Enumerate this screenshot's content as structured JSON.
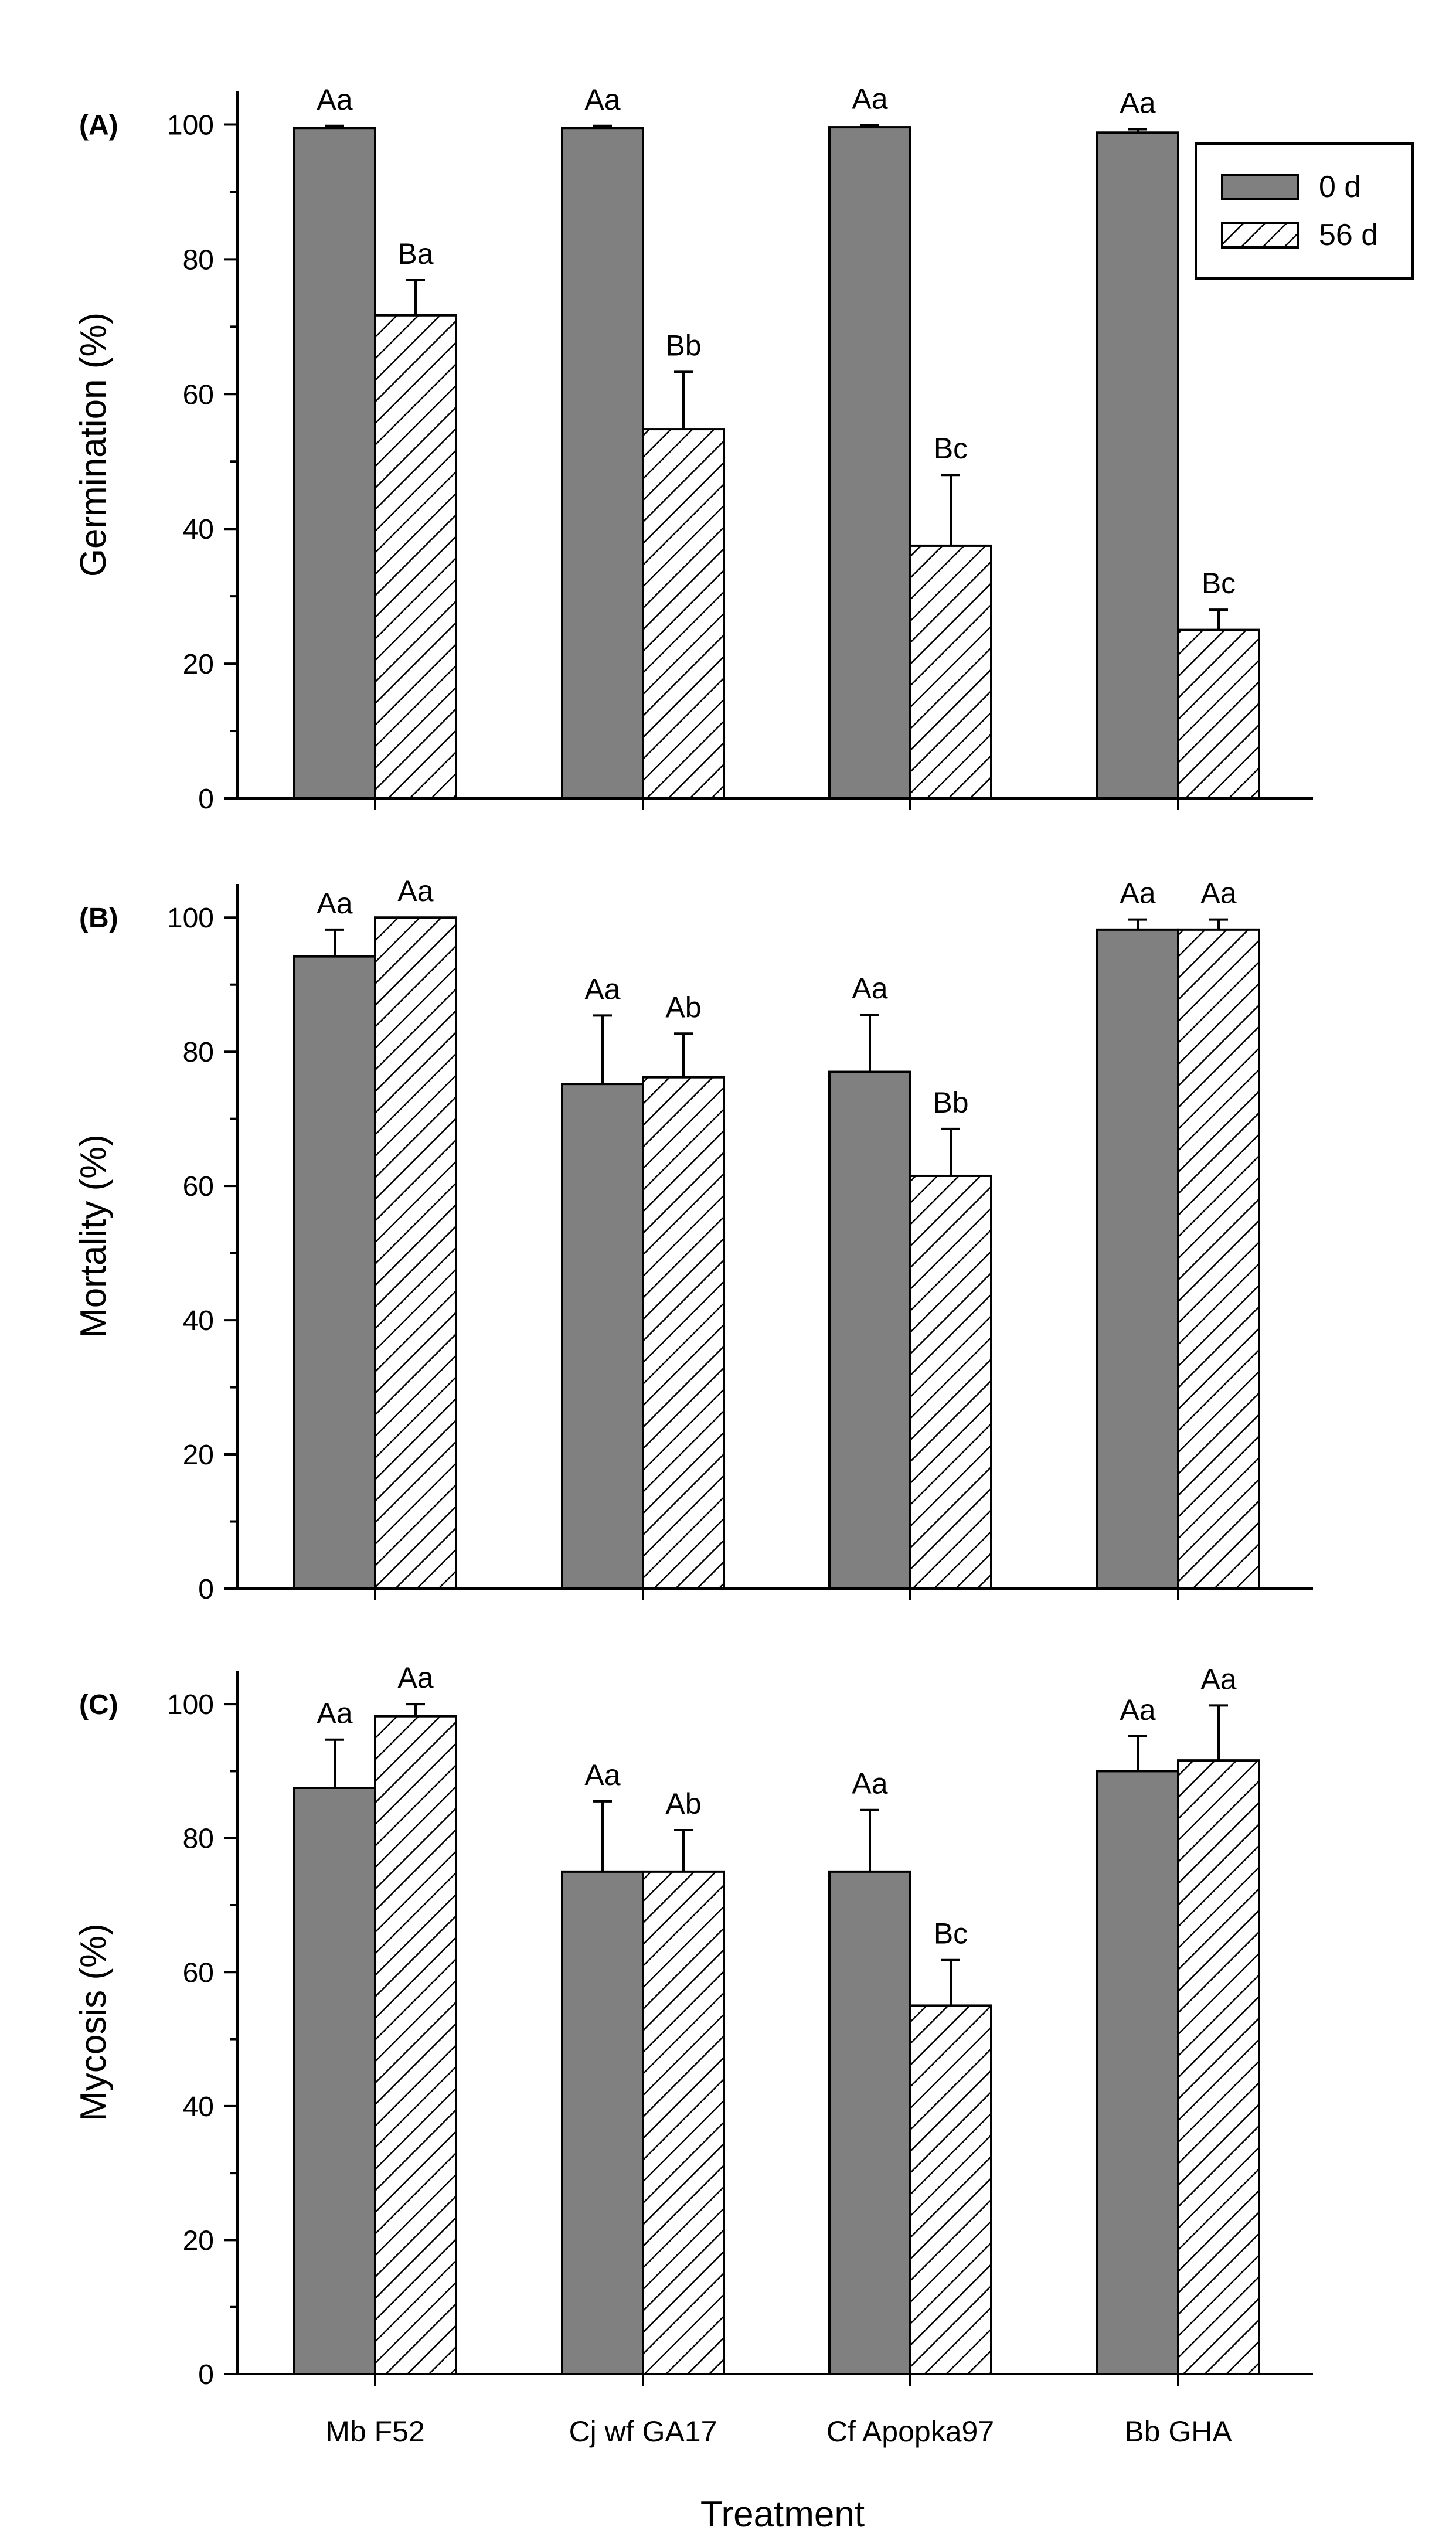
{
  "chart_data": [
    {
      "panel": "(A)",
      "type": "bar",
      "ylabel": "Germination (%)",
      "ylim": [
        0,
        105
      ],
      "yticks": [
        0,
        20,
        40,
        60,
        80,
        100
      ],
      "categories": [
        "Mb F52",
        "Cj wf GA17",
        "Cf Apopka97",
        "Bb GHA"
      ],
      "series": [
        {
          "name": "0 d",
          "values": [
            99.5,
            99.5,
            99.6,
            98.8
          ],
          "errors": [
            0.3,
            0.3,
            0.3,
            0.5
          ],
          "letters": [
            "Aa",
            "Aa",
            "Aa",
            "Aa"
          ]
        },
        {
          "name": "56 d",
          "values": [
            71.7,
            54.8,
            37.5,
            25.0
          ],
          "errors": [
            5.2,
            8.5,
            10.5,
            3.0
          ],
          "letters": [
            "Ba",
            "Bb",
            "Bc",
            "Bc"
          ]
        }
      ]
    },
    {
      "panel": "(B)",
      "type": "bar",
      "ylabel": "Mortality (%)",
      "ylim": [
        0,
        105
      ],
      "yticks": [
        0,
        20,
        40,
        60,
        80,
        100
      ],
      "categories": [
        "Mb F52",
        "Cj wf GA17",
        "Cf Apopka97",
        "Bb GHA"
      ],
      "series": [
        {
          "name": "0 d",
          "values": [
            94.2,
            75.2,
            77.0,
            98.2
          ],
          "errors": [
            4.0,
            10.2,
            8.5,
            1.5
          ],
          "letters": [
            "Aa",
            "Aa",
            "Aa",
            "Aa"
          ]
        },
        {
          "name": "56 d",
          "values": [
            100.0,
            76.2,
            61.5,
            98.2
          ],
          "errors": [
            0.0,
            6.5,
            7.0,
            1.5
          ],
          "letters": [
            "Aa",
            "Ab",
            "Bb",
            "Aa"
          ]
        }
      ]
    },
    {
      "panel": "(C)",
      "type": "bar",
      "ylabel": "Mycosis (%)",
      "ylim": [
        0,
        105
      ],
      "yticks": [
        0,
        20,
        40,
        60,
        80,
        100
      ],
      "categories": [
        "Mb F52",
        "Cj wf GA17",
        "Cf Apopka97",
        "Bb GHA"
      ],
      "series": [
        {
          "name": "0 d",
          "values": [
            87.5,
            75.0,
            75.0,
            90.0
          ],
          "errors": [
            7.2,
            10.5,
            9.2,
            5.2
          ],
          "letters": [
            "Aa",
            "Aa",
            "Aa",
            "Aa"
          ]
        },
        {
          "name": "56 d",
          "values": [
            98.2,
            75.0,
            55.0,
            91.6
          ],
          "errors": [
            1.8,
            6.2,
            6.8,
            8.2
          ],
          "letters": [
            "Aa",
            "Ab",
            "Bc",
            "Aa"
          ]
        }
      ]
    }
  ],
  "xlabel": "Treatment",
  "legend": {
    "position": "top-right",
    "entries": [
      "0 d",
      "56 d"
    ]
  },
  "colors": {
    "series0": "#808080",
    "series1_hatch": "#000000",
    "axis": "#000000"
  }
}
